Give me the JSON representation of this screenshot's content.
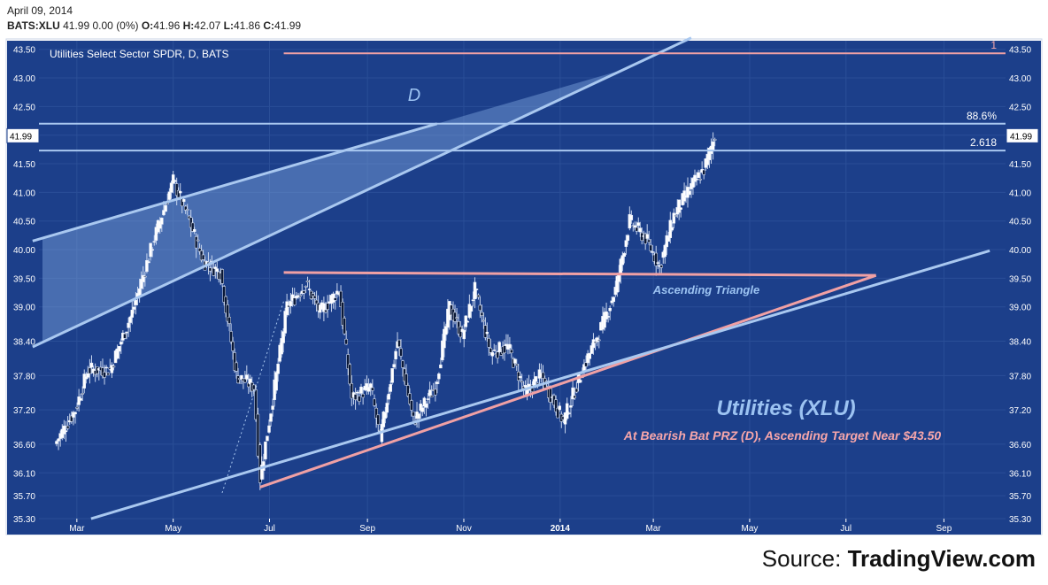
{
  "header": {
    "date": "April 09, 2014",
    "symbol": "BATS:XLU",
    "last": "41.99",
    "change": "0.00 (0%)",
    "open_label": "O:",
    "open": "41.96",
    "high_label": "H:",
    "high": "42.07",
    "low_label": "L:",
    "low": "41.86",
    "close_label": "C:",
    "close": "41.99"
  },
  "source": {
    "prefix": "Source: ",
    "brand": "TradingView.com"
  },
  "colors": {
    "background": "#1c3f8a",
    "grid": "#2a4e97",
    "blue_line": "#a9c8f0",
    "pink_line": "#f0a0a4",
    "candle_up": "#ffffff",
    "candle_down": "#0a1836",
    "annotation_blue": "#9cc3f2",
    "annotation_pink": "#f7a6aa"
  },
  "chart_data": {
    "type": "candlestick",
    "title": "Utilities Select Sector SPDR, D, BATS",
    "xlabel": "",
    "ylabel": "",
    "ylim": [
      35.3,
      43.65
    ],
    "x_ticks": [
      "Mar",
      "May",
      "Jul",
      "Sep",
      "Nov",
      "2014",
      "Mar",
      "May",
      "Jul",
      "Sep"
    ],
    "y_ticks": [
      35.3,
      35.7,
      36.1,
      36.6,
      37.2,
      37.8,
      38.4,
      39.0,
      39.5,
      40.0,
      40.5,
      41.0,
      41.5,
      42.0,
      42.5,
      43.0,
      43.5
    ],
    "last_price_label": "41.99",
    "price_path": [
      [
        "2013-02-15",
        36.6
      ],
      [
        "2013-02-28",
        37.2
      ],
      [
        "2013-03-08",
        37.9
      ],
      [
        "2013-03-22",
        37.9
      ],
      [
        "2013-04-05",
        38.9
      ],
      [
        "2013-04-19",
        40.2
      ],
      [
        "2013-05-01",
        41.2
      ],
      [
        "2013-05-10",
        40.6
      ],
      [
        "2013-05-20",
        39.8
      ],
      [
        "2013-05-31",
        39.6
      ],
      [
        "2013-06-10",
        37.8
      ],
      [
        "2013-06-21",
        37.6
      ],
      [
        "2013-06-25",
        36.0
      ],
      [
        "2013-07-03",
        37.4
      ],
      [
        "2013-07-12",
        39.0
      ],
      [
        "2013-07-24",
        39.4
      ],
      [
        "2013-08-02",
        38.9
      ],
      [
        "2013-08-14",
        39.3
      ],
      [
        "2013-08-22",
        37.4
      ],
      [
        "2013-09-03",
        37.6
      ],
      [
        "2013-09-09",
        36.7
      ],
      [
        "2013-09-20",
        38.4
      ],
      [
        "2013-09-30",
        37.0
      ],
      [
        "2013-10-14",
        37.6
      ],
      [
        "2013-10-23",
        39.0
      ],
      [
        "2013-10-31",
        38.5
      ],
      [
        "2013-11-08",
        39.3
      ],
      [
        "2013-11-18",
        38.2
      ],
      [
        "2013-11-29",
        38.3
      ],
      [
        "2013-12-10",
        37.5
      ],
      [
        "2013-12-20",
        37.8
      ],
      [
        "2014-01-03",
        37.0
      ],
      [
        "2014-01-15",
        37.9
      ],
      [
        "2014-01-28",
        38.7
      ],
      [
        "2014-02-05",
        39.3
      ],
      [
        "2014-02-14",
        40.5
      ],
      [
        "2014-02-24",
        40.2
      ],
      [
        "2014-03-05",
        39.7
      ],
      [
        "2014-03-14",
        40.6
      ],
      [
        "2014-03-25",
        41.1
      ],
      [
        "2014-04-02",
        41.4
      ],
      [
        "2014-04-09",
        41.99
      ]
    ],
    "horizontal_levels": [
      {
        "price": 42.2,
        "label": "88.6%",
        "color": "blue"
      },
      {
        "price": 41.73,
        "label": "2.618",
        "color": "blue"
      },
      {
        "price": 43.43,
        "label": "1",
        "color": "pink",
        "from": "2013-07-10"
      }
    ],
    "trendlines": [
      {
        "name": "ascending-triangle-resistance",
        "color": "pink",
        "points": [
          [
            "2013-07-10",
            39.6
          ],
          [
            "2014-07-20",
            39.55
          ]
        ]
      },
      {
        "name": "ascending-triangle-support",
        "color": "pink",
        "points": [
          [
            "2013-06-25",
            35.85
          ],
          [
            "2014-07-20",
            39.55
          ]
        ]
      },
      {
        "name": "long-term-support",
        "color": "blue",
        "points": [
          [
            "2013-03-10",
            35.3
          ],
          [
            "2014-09-30",
            39.98
          ]
        ]
      },
      {
        "name": "wedge-upper",
        "color": "blue",
        "points": [
          [
            "2013-02-01",
            40.15
          ],
          [
            "2013-10-15",
            42.2
          ]
        ]
      },
      {
        "name": "wedge-lower",
        "color": "blue",
        "points": [
          [
            "2013-02-01",
            38.3
          ],
          [
            "2014-03-25",
            43.7
          ]
        ]
      },
      {
        "name": "dotted-rise",
        "color": "blue",
        "dotted": true,
        "points": [
          [
            "2013-06-01",
            35.75
          ],
          [
            "2013-07-10",
            39.1
          ]
        ]
      }
    ],
    "annotations": [
      {
        "text": "D",
        "color": "blue"
      },
      {
        "text": "Ascending Triangle",
        "color": "blue"
      },
      {
        "text": "Utilities (XLU)",
        "color": "blue"
      },
      {
        "text": "At Bearish Bat PRZ (D), Ascending Target Near $43.50",
        "color": "pink"
      }
    ]
  }
}
